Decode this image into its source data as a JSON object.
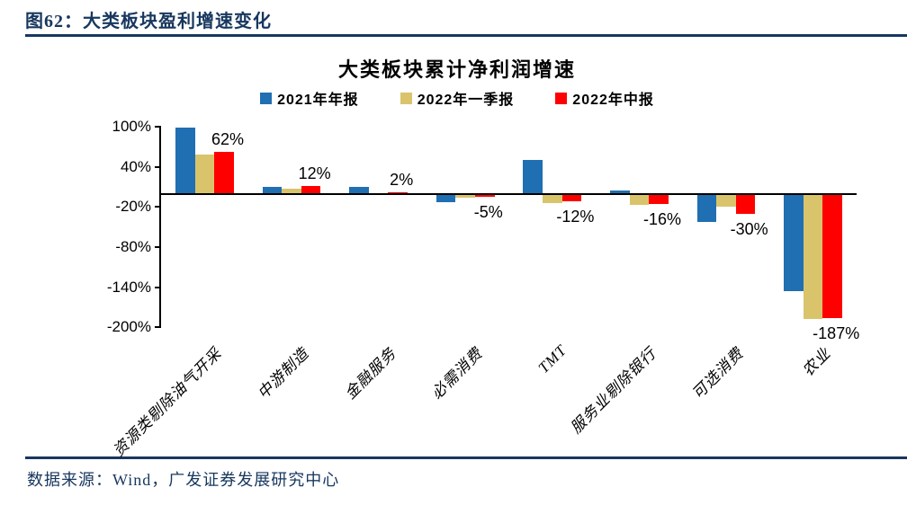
{
  "figure_label": "图62：大类板块盈利增速变化",
  "footer_source": "数据来源：Wind，广发证券发展研究中心",
  "chart_data": {
    "type": "bar",
    "title": "大类板块累计净利润增速",
    "categories": [
      "资源类剔除油气开采",
      "中游制造",
      "金融服务",
      "必需消费",
      "TMT",
      "服务业剔除银行",
      "可选消费",
      "农业"
    ],
    "series": [
      {
        "name": "2021年年报",
        "color": "#1F6FB2",
        "values": [
          99,
          10,
          10,
          -13,
          51,
          5,
          -43,
          -146
        ]
      },
      {
        "name": "2022年一季报",
        "color": "#D9C46C",
        "values": [
          58,
          8,
          -1,
          -6,
          -14,
          -17,
          -20,
          -188
        ]
      },
      {
        "name": "2022年中报",
        "color": "#FE0000",
        "values": [
          62,
          12,
          2,
          -5,
          -12,
          -16,
          -30,
          -187
        ],
        "data_labels": [
          "62%",
          "12%",
          "2%",
          "-5%",
          "-12%",
          "-16%",
          "-30%",
          "-187%"
        ]
      }
    ],
    "yticks": [
      {
        "label": "100%",
        "value": 100
      },
      {
        "label": "40%",
        "value": 40
      },
      {
        "label": "-20%",
        "value": -20
      },
      {
        "label": "-80%",
        "value": -80
      },
      {
        "label": "-140%",
        "value": -140
      },
      {
        "label": "-200%",
        "value": -200
      }
    ],
    "ylim": [
      -200,
      100
    ],
    "legend_position": "top",
    "grid": false,
    "axis_color": "#000000"
  }
}
